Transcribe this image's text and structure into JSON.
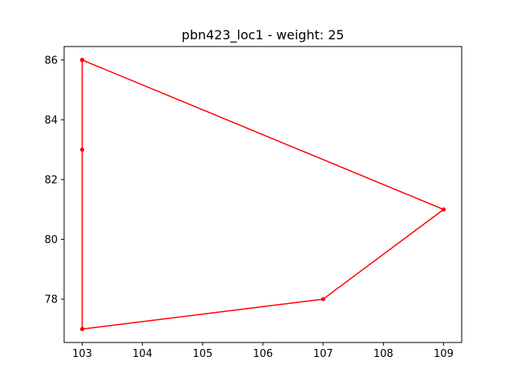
{
  "chart_data": {
    "type": "line",
    "title": "pbn423_loc1 - weight: 25",
    "xlabel": "",
    "ylabel": "",
    "xlim": [
      102.7,
      109.3
    ],
    "ylim": [
      76.55,
      86.45
    ],
    "xticks": [
      103,
      104,
      105,
      106,
      107,
      108,
      109
    ],
    "yticks": [
      78,
      80,
      82,
      84,
      86
    ],
    "grid": false,
    "series": [
      {
        "color": "#ff0000",
        "points": [
          {
            "x": 103,
            "y": 86
          },
          {
            "x": 109,
            "y": 81
          },
          {
            "x": 107,
            "y": 78
          },
          {
            "x": 103,
            "y": 77
          },
          {
            "x": 103,
            "y": 83
          },
          {
            "x": 103,
            "y": 86
          }
        ]
      }
    ]
  }
}
